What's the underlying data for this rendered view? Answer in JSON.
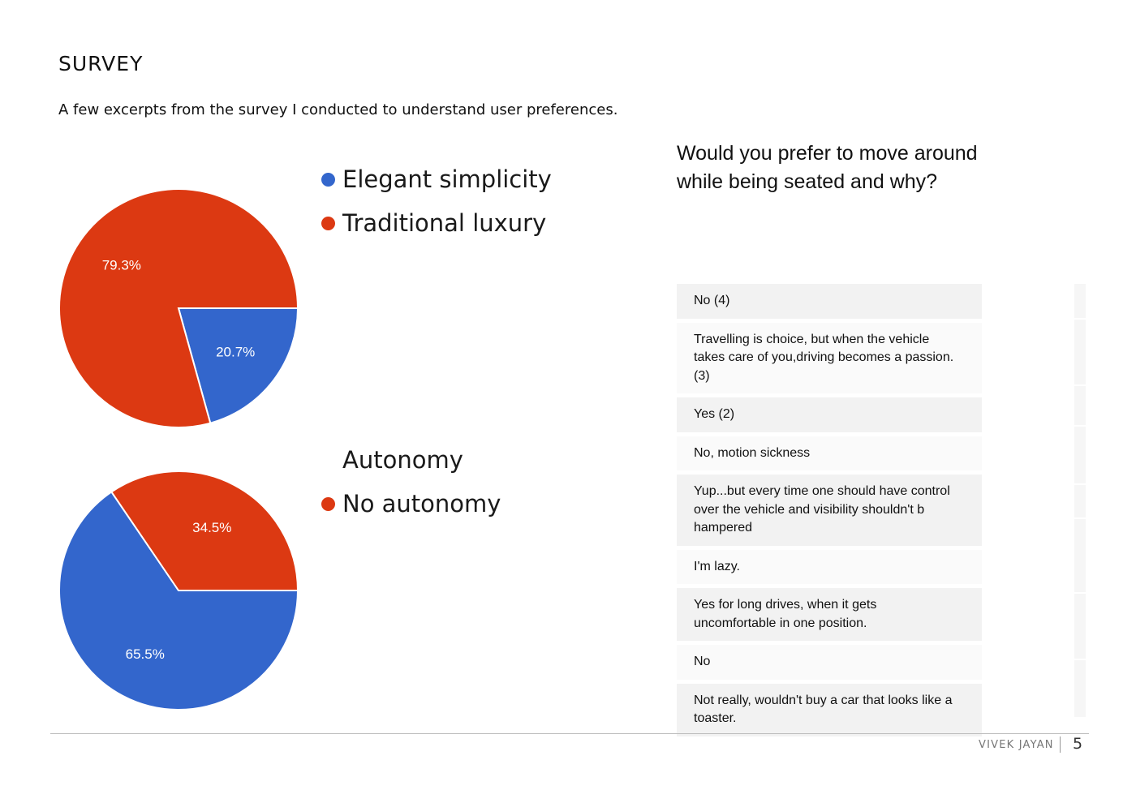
{
  "page": {
    "title": "SURVEY",
    "subtitle": "A few excerpts from the survey I conducted to understand user preferences."
  },
  "colors": {
    "blue": "#3366cc",
    "red": "#dc3912"
  },
  "chart_data": [
    {
      "type": "pie",
      "title": "",
      "legend_position": "right",
      "slices": [
        {
          "label": "Elegant simplicity",
          "value": 20.7,
          "display": "20.7%",
          "color": "#3366cc"
        },
        {
          "label": "Traditional luxury",
          "value": 79.3,
          "display": "79.3%",
          "color": "#dc3912"
        }
      ]
    },
    {
      "type": "pie",
      "title": "",
      "legend_position": "right",
      "slices": [
        {
          "label": "Autonomy",
          "value": 65.5,
          "display": "65.5%",
          "color": "#3366cc"
        },
        {
          "label": "No autonomy",
          "value": 34.5,
          "display": "34.5%",
          "color": "#dc3912"
        }
      ]
    }
  ],
  "legend1": {
    "items": [
      "Elegant simplicity",
      "Traditional luxury"
    ]
  },
  "legend2": {
    "items": [
      "Autonomy",
      "No autonomy"
    ]
  },
  "question": {
    "text": "Would you prefer to move around while being seated and why?",
    "responses": [
      "No (4)",
      "Travelling is choice, but when the vehicle takes care of you,driving becomes a passion. (3)",
      "Yes (2)",
      "No, motion sickness",
      "Yup...but every time one should have control over the vehicle and visibility shouldn't b hampered",
      "I'm lazy.",
      "Yes for long drives, when it gets uncomfortable in one position.",
      "No",
      "Not really, wouldn't buy a car that looks like a toaster."
    ]
  },
  "footer": {
    "name": "VIVEK JAYAN",
    "page_number": "5"
  }
}
